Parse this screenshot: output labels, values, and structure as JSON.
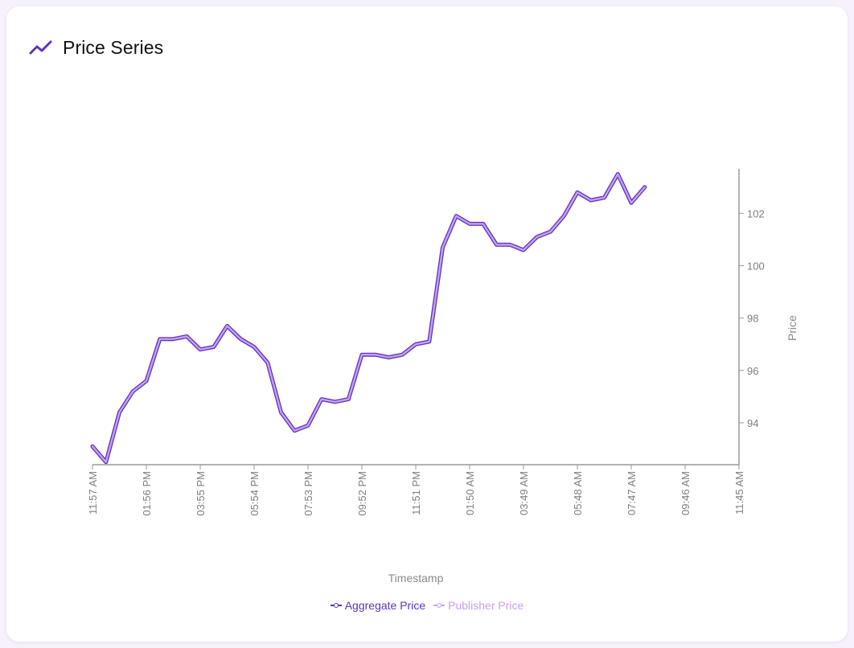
{
  "card": {
    "title": "Price Series",
    "icon": "trending-up-icon"
  },
  "colors": {
    "aggregate": "#5c35b8",
    "publisher": "#c8a0f5",
    "axis": "#9a9a9a"
  },
  "chart_data": {
    "type": "line",
    "xlabel": "Timestamp",
    "ylabel": "Price",
    "y_axis_side": "right",
    "ylim": [
      92.4,
      103.7
    ],
    "yticks": [
      94,
      96,
      98,
      100,
      102
    ],
    "x_tick_labels": [
      "11:57 AM",
      "01:56 PM",
      "03:55 PM",
      "05:54 PM",
      "07:53 PM",
      "09:52 PM",
      "11:51 PM",
      "01:50 AM",
      "03:49 AM",
      "05:48 AM",
      "07:47 AM",
      "09:46 AM",
      "11:45 AM"
    ],
    "legend_position": "bottom",
    "x_points_per_tick": 4,
    "series": [
      {
        "name": "Aggregate Price",
        "values": [
          93.1,
          92.5,
          94.4,
          95.2,
          95.6,
          97.2,
          97.2,
          97.3,
          96.8,
          96.9,
          97.7,
          97.2,
          96.9,
          96.3,
          94.4,
          93.7,
          93.9,
          94.9,
          94.8,
          94.9,
          96.6,
          96.6,
          96.5,
          96.6,
          97.0,
          97.1,
          100.7,
          101.9,
          101.6,
          101.6,
          100.8,
          100.8,
          100.6,
          101.1,
          101.3,
          101.9,
          102.8,
          102.5,
          102.6,
          103.5,
          102.4,
          103.0
        ]
      },
      {
        "name": "Publisher Price",
        "values": [
          93.1,
          92.5,
          94.4,
          95.2,
          95.6,
          97.2,
          97.2,
          97.3,
          96.8,
          96.9,
          97.7,
          97.2,
          96.9,
          96.3,
          94.4,
          93.7,
          93.9,
          94.9,
          94.8,
          94.9,
          96.6,
          96.6,
          96.5,
          96.6,
          97.0,
          97.1,
          100.7,
          101.9,
          101.6,
          101.6,
          100.8,
          100.8,
          100.6,
          101.1,
          101.3,
          101.9,
          102.8,
          102.5,
          102.6,
          103.5,
          102.4,
          103.0
        ]
      }
    ]
  }
}
